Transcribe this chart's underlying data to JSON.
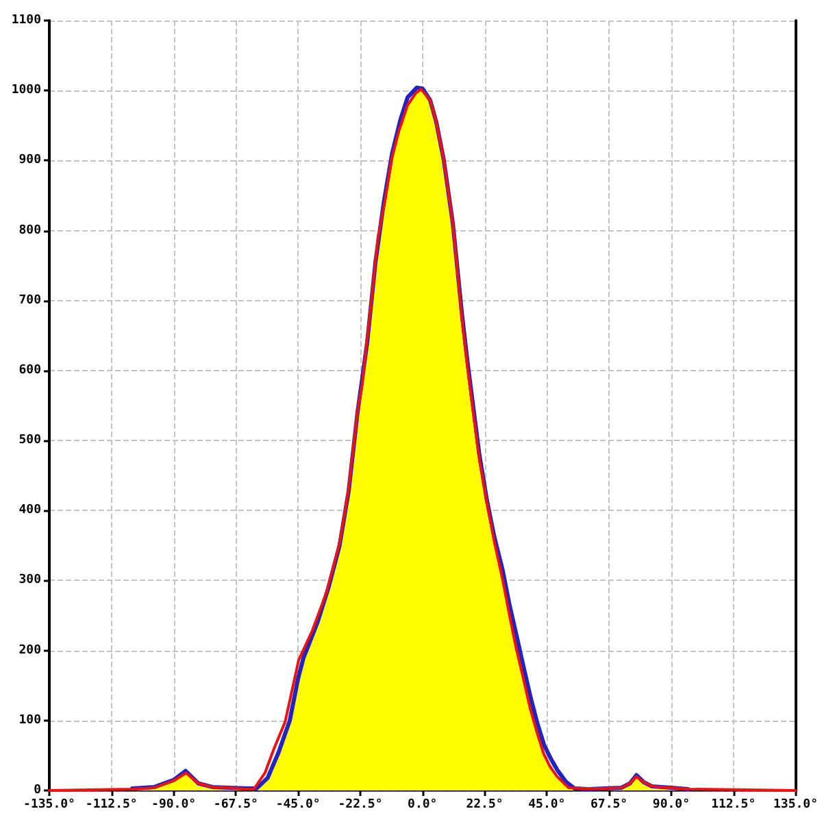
{
  "chart_data": {
    "type": "line",
    "xlim": [
      -135,
      135
    ],
    "xticks": [
      {
        "value": -135,
        "label": "-135.0°"
      },
      {
        "value": -112.5,
        "label": "-112.5°"
      },
      {
        "value": -90,
        "label": "-90.0°"
      },
      {
        "value": -67.5,
        "label": "-67.5°"
      },
      {
        "value": -45,
        "label": "-45.0°"
      },
      {
        "value": -22.5,
        "label": "-22.5°"
      },
      {
        "value": 0,
        "label": "0.0°"
      },
      {
        "value": 22.5,
        "label": "22.5°"
      },
      {
        "value": 45,
        "label": "45.0°"
      },
      {
        "value": 67.5,
        "label": "67.5°"
      },
      {
        "value": 90,
        "label": "90.0°"
      },
      {
        "value": 112.5,
        "label": "112.5°"
      },
      {
        "value": 135,
        "label": "135.0°"
      }
    ],
    "ylim": [
      0,
      1100
    ],
    "yticks": [
      0,
      100,
      200,
      300,
      400,
      500,
      600,
      700,
      800,
      900,
      1000,
      1100
    ],
    "grid": true,
    "marker": "none",
    "line_style": "solid",
    "series": [
      {
        "type": "area",
        "color": "#ffff00",
        "x": [
          -105,
          -97,
          -90,
          -85.5,
          -81,
          -76,
          -70,
          -64,
          -61,
          -57,
          -53.8,
          -49.7,
          -44.8,
          -41.5,
          -38,
          -34,
          -30,
          -26.7,
          -23.5,
          -20,
          -17,
          -14,
          -11.2,
          -8.7,
          -5.4,
          -2.5,
          -0.5,
          2.8,
          5,
          7.7,
          11,
          14.3,
          16.3,
          18.3,
          20.5,
          23.3,
          26,
          29,
          31.5,
          33.9,
          36.5,
          38.9,
          41.5,
          43.8,
          46,
          48.7,
          52.8,
          58,
          65,
          72,
          75,
          77.4,
          80,
          83.1,
          89.7,
          96
        ],
        "values": [
          2,
          4,
          14,
          25,
          10,
          5,
          4,
          2,
          2,
          14,
          40,
          81,
          162,
          205,
          240,
          290,
          350,
          428,
          540,
          640,
          755,
          833,
          901,
          940,
          979,
          996,
          1002,
          986,
          955,
          901,
          810,
          673,
          605,
          542,
          475,
          412,
          355,
          301,
          250,
          203,
          160,
          118,
          82,
          53,
          35,
          20,
          4,
          2,
          3,
          4,
          10,
          20,
          12,
          6,
          4,
          2
        ]
      },
      {
        "color": "#2323c0",
        "x": [
          -105,
          -97,
          -90,
          -85.7,
          -81,
          -76,
          -70,
          -63,
          -60,
          -56,
          -52,
          -48,
          -45,
          -43,
          -41.5,
          -38,
          -34,
          -30,
          -26.7,
          -23.5,
          -20,
          -17,
          -14,
          -11,
          -8,
          -5.4,
          -2.1,
          0,
          2.8,
          5,
          7.7,
          11,
          14.3,
          16.3,
          18.3,
          20.5,
          23.3,
          26,
          29,
          31.5,
          34,
          36.5,
          39,
          41.5,
          44,
          46.5,
          49,
          52,
          55,
          60,
          72,
          75,
          77.4,
          80,
          83,
          90,
          96
        ],
        "values": [
          3,
          5,
          15,
          28,
          10,
          5,
          4,
          3,
          3,
          18,
          55,
          100,
          160,
          190,
          205,
          240,
          290,
          350,
          428,
          540,
          640,
          755,
          840,
          910,
          958,
          990,
          1004,
          1003,
          986,
          955,
          901,
          810,
          680,
          612,
          550,
          482,
          415,
          362,
          315,
          265,
          222,
          178,
          135,
          97,
          65,
          45,
          28,
          12,
          3,
          2,
          4,
          10,
          22,
          12,
          6,
          4,
          2
        ]
      },
      {
        "color": "#ee1111",
        "x": [
          -135,
          -105,
          -97,
          -90,
          -85.5,
          -81,
          -76,
          -70,
          -64,
          -61,
          -57,
          -53.8,
          -49.7,
          -44.8,
          -39.8,
          -34.9,
          -30,
          -26.7,
          -23.5,
          -21.8,
          -18.5,
          -16.1,
          -13.6,
          -11.2,
          -8.7,
          -5.4,
          -2.5,
          -0.5,
          2.8,
          5,
          7.7,
          11,
          14.3,
          16.3,
          18.3,
          20.5,
          23.3,
          26,
          29,
          31.5,
          33.9,
          36.5,
          38.9,
          41.5,
          43.8,
          46,
          48.7,
          52.8,
          58,
          65,
          72,
          75,
          77.4,
          80,
          83.1,
          89.7,
          96,
          135
        ],
        "values": [
          0,
          2,
          4,
          14,
          25,
          10,
          5,
          4,
          2,
          2,
          25,
          59,
          98,
          186,
          229,
          281,
          353,
          431,
          542,
          581,
          699,
          790,
          842,
          901,
          940,
          979,
          996,
          1002,
          986,
          955,
          901,
          810,
          673,
          605,
          542,
          475,
          412,
          355,
          301,
          250,
          203,
          160,
          118,
          82,
          53,
          35,
          20,
          4,
          3,
          3,
          4,
          10,
          20,
          12,
          6,
          4,
          2,
          0
        ]
      }
    ]
  }
}
